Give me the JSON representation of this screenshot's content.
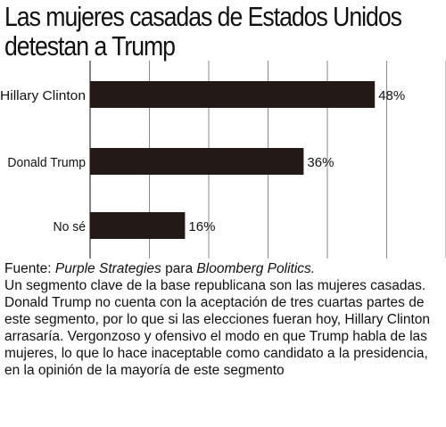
{
  "title": {
    "line1": "Las mujeres casadas de Estados Unidos",
    "line2": "detestan a Trump"
  },
  "chart_data": {
    "type": "bar",
    "orientation": "horizontal",
    "categories": [
      "Hillary Clinton",
      "Donald Trump",
      "No sé"
    ],
    "values": [
      48,
      36,
      16
    ],
    "value_labels": [
      "48%",
      "36%",
      "16%"
    ],
    "xlim": [
      0,
      60
    ],
    "grid": "vertical",
    "bar_color": "#231a17"
  },
  "source": {
    "prefix": "Fuente: ",
    "org": "Purple Strategies",
    "middle": " para ",
    "outlet": "Bloomberg Politics."
  },
  "description": "Un segmento clave de la base republicana son las mujeres casadas. Donald Trump no cuenta con la aceptación de tres cuartas partes de este segmento, por lo que si las elecciones fueran hoy, Hillary Clinton arrasaría. Vergonzoso y ofensivo el modo en que Trump habla de las mujeres, lo que lo hace inaceptable como candidato a la presidencia, en la opinión de la mayoría de este segmento"
}
